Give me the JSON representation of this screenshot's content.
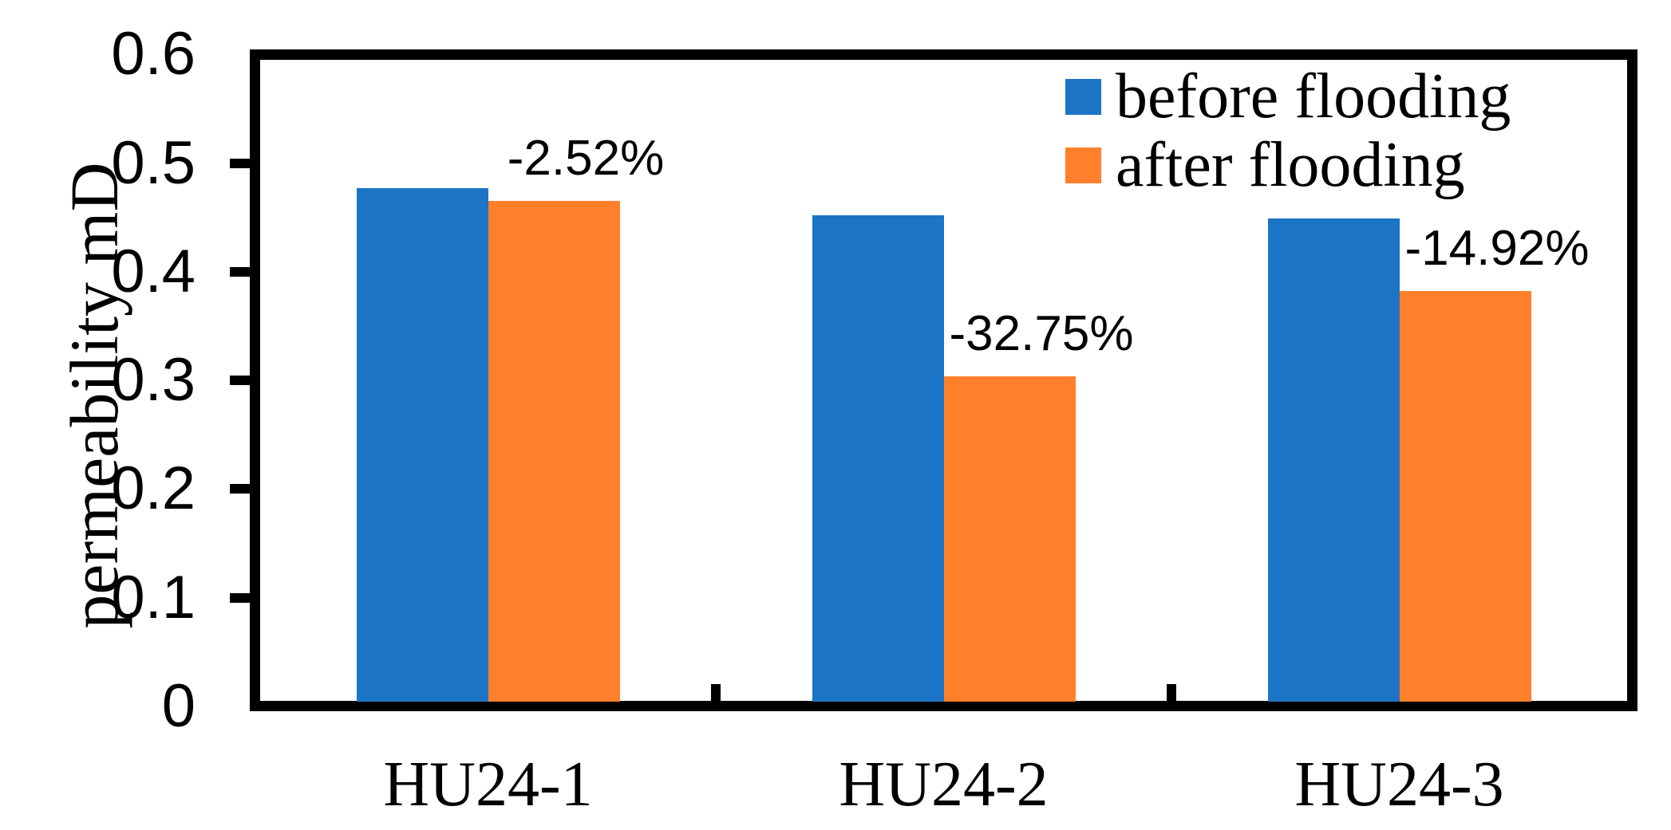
{
  "chart_data": {
    "type": "bar",
    "title": "",
    "xlabel": "",
    "ylabel": "permeability mD",
    "ylim": [
      0,
      0.6
    ],
    "yticks": [
      {
        "value": 0.0,
        "label": "0"
      },
      {
        "value": 0.1,
        "label": "0.1"
      },
      {
        "value": 0.2,
        "label": "0.2"
      },
      {
        "value": 0.3,
        "label": "0.3"
      },
      {
        "value": 0.4,
        "label": "0.4"
      },
      {
        "value": 0.5,
        "label": "0.5"
      },
      {
        "value": 0.6,
        "label": "0.6"
      }
    ],
    "categories": [
      "HU24-1",
      "HU24-2",
      "HU24-3"
    ],
    "series": [
      {
        "name": "before flooding",
        "color": "#1B74C5",
        "values": [
          0.477,
          0.452,
          0.449
        ]
      },
      {
        "name": "after flooding",
        "color": "#FF7F2B",
        "values": [
          0.465,
          0.304,
          0.382
        ]
      }
    ],
    "annotations": [
      "-2.52%",
      "-32.75%",
      "-14.92%"
    ],
    "legend_position": "top-right-inside",
    "grid": false,
    "axis_color": "#000000",
    "background_color": "#FFFFFF"
  }
}
